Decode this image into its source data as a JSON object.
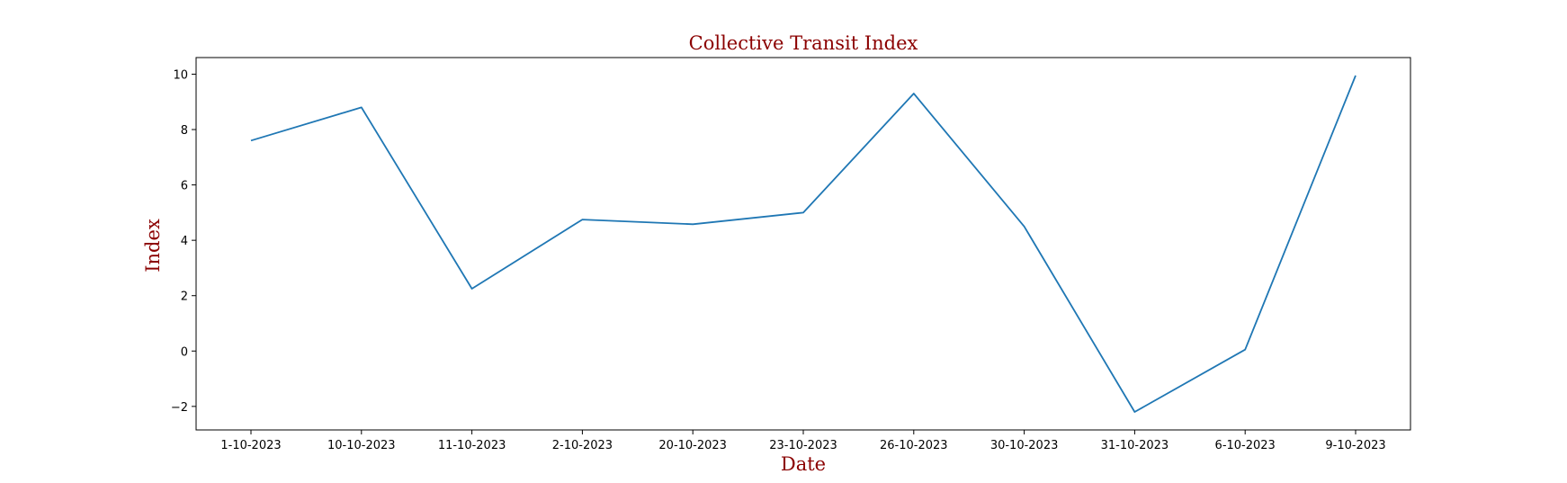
{
  "colors": {
    "line": "#1f77b4",
    "title": "#8b0000",
    "axis_label": "#8b0000",
    "frame": "#000000",
    "background": "#ffffff"
  },
  "chart_data": {
    "type": "line",
    "title": "Collective Transit Index",
    "xlabel": "Date",
    "ylabel": "Index",
    "categories": [
      "1-10-2023",
      "10-10-2023",
      "11-10-2023",
      "2-10-2023",
      "20-10-2023",
      "23-10-2023",
      "26-10-2023",
      "30-10-2023",
      "31-10-2023",
      "6-10-2023",
      "9-10-2023"
    ],
    "series": [
      {
        "values": [
          7.6,
          8.8,
          2.25,
          4.75,
          4.58,
          5.0,
          9.3,
          4.5,
          -2.2,
          0.05,
          9.95
        ]
      }
    ],
    "ylim": [
      -2.85,
      10.6
    ],
    "yticks": [
      -2,
      0,
      2,
      4,
      6,
      8,
      10
    ],
    "grid": false,
    "legend": false
  }
}
